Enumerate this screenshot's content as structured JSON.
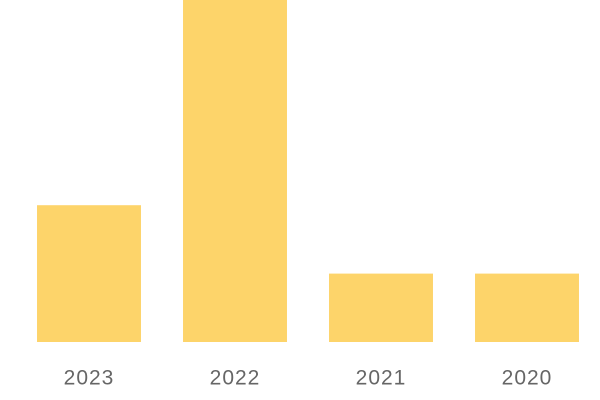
{
  "chart_data": {
    "type": "bar",
    "categories": [
      "2023",
      "2022",
      "2021",
      "2020"
    ],
    "values": [
      2,
      5,
      1,
      1
    ],
    "color": "#fdd46a",
    "ylim": [
      0,
      5
    ]
  }
}
